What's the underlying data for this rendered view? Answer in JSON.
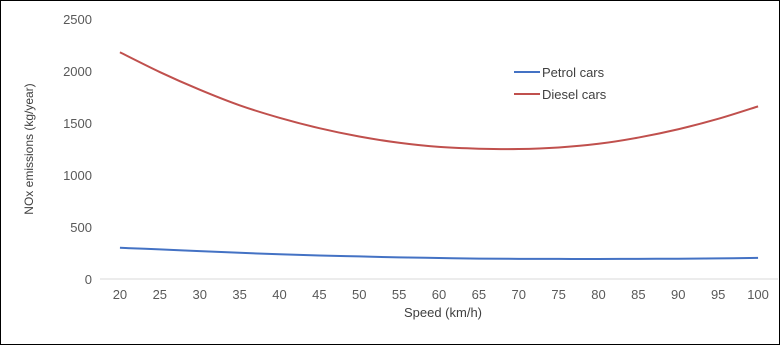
{
  "chart_data": {
    "type": "line",
    "title": "",
    "xlabel": "Speed (km/h)",
    "ylabel": "NOx emissions (kg/year)",
    "ylim": [
      0,
      2500
    ],
    "y_ticks": [
      0,
      500,
      1000,
      1500,
      2000,
      2500
    ],
    "grid": false,
    "legend_position": "top-right inside",
    "categories": [
      20,
      25,
      30,
      35,
      40,
      45,
      50,
      55,
      60,
      65,
      70,
      75,
      80,
      85,
      90,
      95,
      100
    ],
    "series": [
      {
        "name": "Petrol cars",
        "color": "#4472c4",
        "values": [
          300,
          285,
          268,
          252,
          238,
          226,
          217,
          208,
          202,
          196,
          194,
          193,
          192,
          194,
          195,
          198,
          203
        ]
      },
      {
        "name": "Diesel cars",
        "color": "#c0504d",
        "values": [
          2180,
          1990,
          1820,
          1670,
          1550,
          1450,
          1370,
          1310,
          1270,
          1253,
          1250,
          1265,
          1300,
          1360,
          1440,
          1540,
          1660
        ]
      }
    ]
  }
}
